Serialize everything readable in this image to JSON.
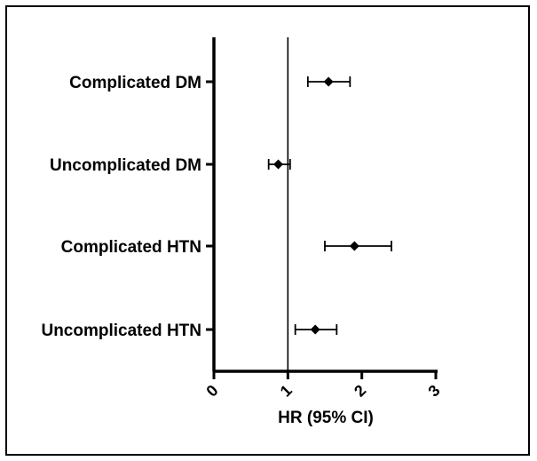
{
  "chart_data": {
    "type": "forest",
    "xlabel": "HR (95%  CI)",
    "xlim": [
      0,
      3
    ],
    "xticks": [
      "0",
      "1",
      "2",
      "3"
    ],
    "reference_line": 1,
    "grid": false,
    "marker": "diamond",
    "rows": [
      {
        "label": "Complicated DM",
        "hr": 1.55,
        "ci_low": 1.27,
        "ci_high": 1.84
      },
      {
        "label": "Uncomplicated DM",
        "hr": 0.87,
        "ci_low": 0.74,
        "ci_high": 1.03
      },
      {
        "label": "Complicated HTN",
        "hr": 1.9,
        "ci_low": 1.5,
        "ci_high": 2.4
      },
      {
        "label": "Uncomplicated HTN",
        "hr": 1.37,
        "ci_low": 1.1,
        "ci_high": 1.66
      }
    ]
  }
}
